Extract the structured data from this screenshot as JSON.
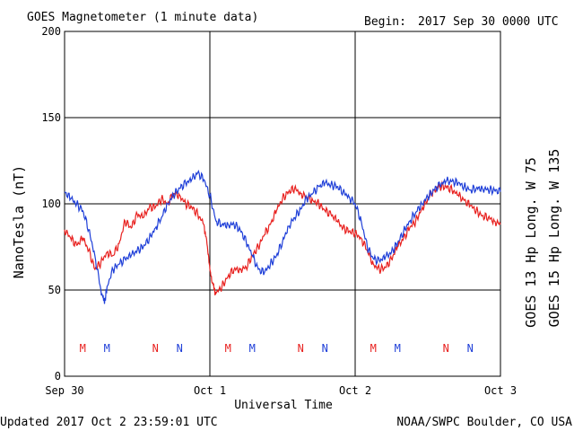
{
  "header": {
    "title": "GOES Magnetometer (1 minute data)",
    "begin_label": "Begin:",
    "begin_value": "2017 Sep 30 0000 UTC"
  },
  "footer": {
    "updated": "Updated 2017 Oct  2 23:59:01 UTC",
    "source": "NOAA/SWPC Boulder, CO USA"
  },
  "colors": {
    "red_series": "#e8211f",
    "blue_series": "#1f3fd8",
    "grid": "#000000"
  },
  "chart_data": {
    "type": "line",
    "title": "GOES Magnetometer (1 minute data)",
    "xlabel": "Universal Time",
    "ylabel": "NanoTesla (nT)",
    "ylim": [
      0,
      200
    ],
    "yticks": [
      "0",
      "50",
      "100",
      "150",
      "200"
    ],
    "xlim_hours": [
      0,
      72
    ],
    "xticks": [
      {
        "h": 0,
        "label": "Sep 30"
      },
      {
        "h": 24,
        "label": "Oct 1"
      },
      {
        "h": 48,
        "label": "Oct 2"
      },
      {
        "h": 72,
        "label": "Oct 3"
      }
    ],
    "grid": true,
    "series": [
      {
        "name": "GOES 13 Hp  Long. W 75",
        "color": "#e8211f",
        "points": [
          [
            0,
            85
          ],
          [
            1,
            80
          ],
          [
            2,
            76
          ],
          [
            3,
            80
          ],
          [
            4,
            73
          ],
          [
            5,
            62
          ],
          [
            6,
            66
          ],
          [
            7,
            72
          ],
          [
            8,
            70
          ],
          [
            9,
            77
          ],
          [
            10,
            90
          ],
          [
            11,
            86
          ],
          [
            12,
            94
          ],
          [
            13,
            92
          ],
          [
            14,
            98
          ],
          [
            15,
            98
          ],
          [
            16,
            103
          ],
          [
            17,
            100
          ],
          [
            18,
            106
          ],
          [
            19,
            105
          ],
          [
            20,
            100
          ],
          [
            21,
            98
          ],
          [
            22,
            94
          ],
          [
            23,
            88
          ],
          [
            23.6,
            75
          ],
          [
            24,
            62
          ],
          [
            24.4,
            54
          ],
          [
            25,
            48
          ],
          [
            26,
            52
          ],
          [
            27,
            58
          ],
          [
            28,
            62
          ],
          [
            29,
            62
          ],
          [
            30,
            63
          ],
          [
            31,
            70
          ],
          [
            32,
            75
          ],
          [
            33,
            82
          ],
          [
            34,
            88
          ],
          [
            35,
            96
          ],
          [
            36,
            103
          ],
          [
            37,
            107
          ],
          [
            38,
            109
          ],
          [
            39,
            106
          ],
          [
            40,
            104
          ],
          [
            41,
            102
          ],
          [
            42,
            100
          ],
          [
            43,
            96
          ],
          [
            44,
            94
          ],
          [
            45,
            90
          ],
          [
            46,
            86
          ],
          [
            47,
            84
          ],
          [
            48,
            83
          ],
          [
            49,
            80
          ],
          [
            50,
            73
          ],
          [
            51,
            65
          ],
          [
            52,
            62
          ],
          [
            53,
            63
          ],
          [
            54,
            68
          ],
          [
            55,
            75
          ],
          [
            56,
            80
          ],
          [
            57,
            86
          ],
          [
            58,
            90
          ],
          [
            59,
            97
          ],
          [
            60,
            103
          ],
          [
            61,
            108
          ],
          [
            62,
            110
          ],
          [
            63,
            110
          ],
          [
            64,
            108
          ],
          [
            65,
            105
          ],
          [
            66,
            102
          ],
          [
            67,
            99
          ],
          [
            68,
            96
          ],
          [
            69,
            93
          ],
          [
            70,
            92
          ],
          [
            71,
            90
          ],
          [
            72,
            88
          ]
        ]
      },
      {
        "name": "GOES 15 Hp  Long. W 135",
        "color": "#1f3fd8",
        "points": [
          [
            0,
            107
          ],
          [
            1,
            103
          ],
          [
            2,
            100
          ],
          [
            3,
            96
          ],
          [
            4,
            85
          ],
          [
            5,
            70
          ],
          [
            6,
            50
          ],
          [
            6.6,
            42
          ],
          [
            7,
            52
          ],
          [
            8,
            62
          ],
          [
            9,
            65
          ],
          [
            10,
            68
          ],
          [
            11,
            70
          ],
          [
            12,
            73
          ],
          [
            13,
            75
          ],
          [
            14,
            80
          ],
          [
            15,
            86
          ],
          [
            16,
            92
          ],
          [
            17,
            100
          ],
          [
            18,
            105
          ],
          [
            19,
            109
          ],
          [
            20,
            112
          ],
          [
            21,
            114
          ],
          [
            22,
            118
          ],
          [
            23,
            114
          ],
          [
            24,
            105
          ],
          [
            25,
            90
          ],
          [
            26,
            88
          ],
          [
            27,
            88
          ],
          [
            28,
            88
          ],
          [
            29,
            85
          ],
          [
            30,
            78
          ],
          [
            31,
            70
          ],
          [
            32,
            62
          ],
          [
            33,
            60
          ],
          [
            34,
            65
          ],
          [
            35,
            70
          ],
          [
            36,
            78
          ],
          [
            37,
            87
          ],
          [
            38,
            92
          ],
          [
            39,
            97
          ],
          [
            40,
            103
          ],
          [
            41,
            106
          ],
          [
            42,
            110
          ],
          [
            43,
            112
          ],
          [
            44,
            111
          ],
          [
            45,
            110
          ],
          [
            46,
            107
          ],
          [
            47,
            104
          ],
          [
            48,
            100
          ],
          [
            49,
            90
          ],
          [
            50,
            75
          ],
          [
            51,
            68
          ],
          [
            52,
            67
          ],
          [
            53,
            69
          ],
          [
            54,
            72
          ],
          [
            55,
            77
          ],
          [
            56,
            84
          ],
          [
            57,
            90
          ],
          [
            58,
            95
          ],
          [
            59,
            100
          ],
          [
            60,
            104
          ],
          [
            61,
            108
          ],
          [
            62,
            111
          ],
          [
            63,
            113
          ],
          [
            64,
            113
          ],
          [
            65,
            112
          ],
          [
            66,
            110
          ],
          [
            67,
            108
          ],
          [
            68,
            109
          ],
          [
            69,
            109
          ],
          [
            70,
            108
          ],
          [
            71,
            108
          ],
          [
            72,
            107
          ]
        ]
      }
    ],
    "markers": [
      {
        "h": 3,
        "text": "M",
        "color": "#e8211f"
      },
      {
        "h": 7,
        "text": "M",
        "color": "#1f3fd8"
      },
      {
        "h": 15,
        "text": "N",
        "color": "#e8211f"
      },
      {
        "h": 19,
        "text": "N",
        "color": "#1f3fd8"
      },
      {
        "h": 27,
        "text": "M",
        "color": "#e8211f"
      },
      {
        "h": 31,
        "text": "M",
        "color": "#1f3fd8"
      },
      {
        "h": 39,
        "text": "N",
        "color": "#e8211f"
      },
      {
        "h": 43,
        "text": "N",
        "color": "#1f3fd8"
      },
      {
        "h": 51,
        "text": "M",
        "color": "#e8211f"
      },
      {
        "h": 55,
        "text": "M",
        "color": "#1f3fd8"
      },
      {
        "h": 63,
        "text": "N",
        "color": "#e8211f"
      },
      {
        "h": 67,
        "text": "N",
        "color": "#1f3fd8"
      }
    ]
  }
}
